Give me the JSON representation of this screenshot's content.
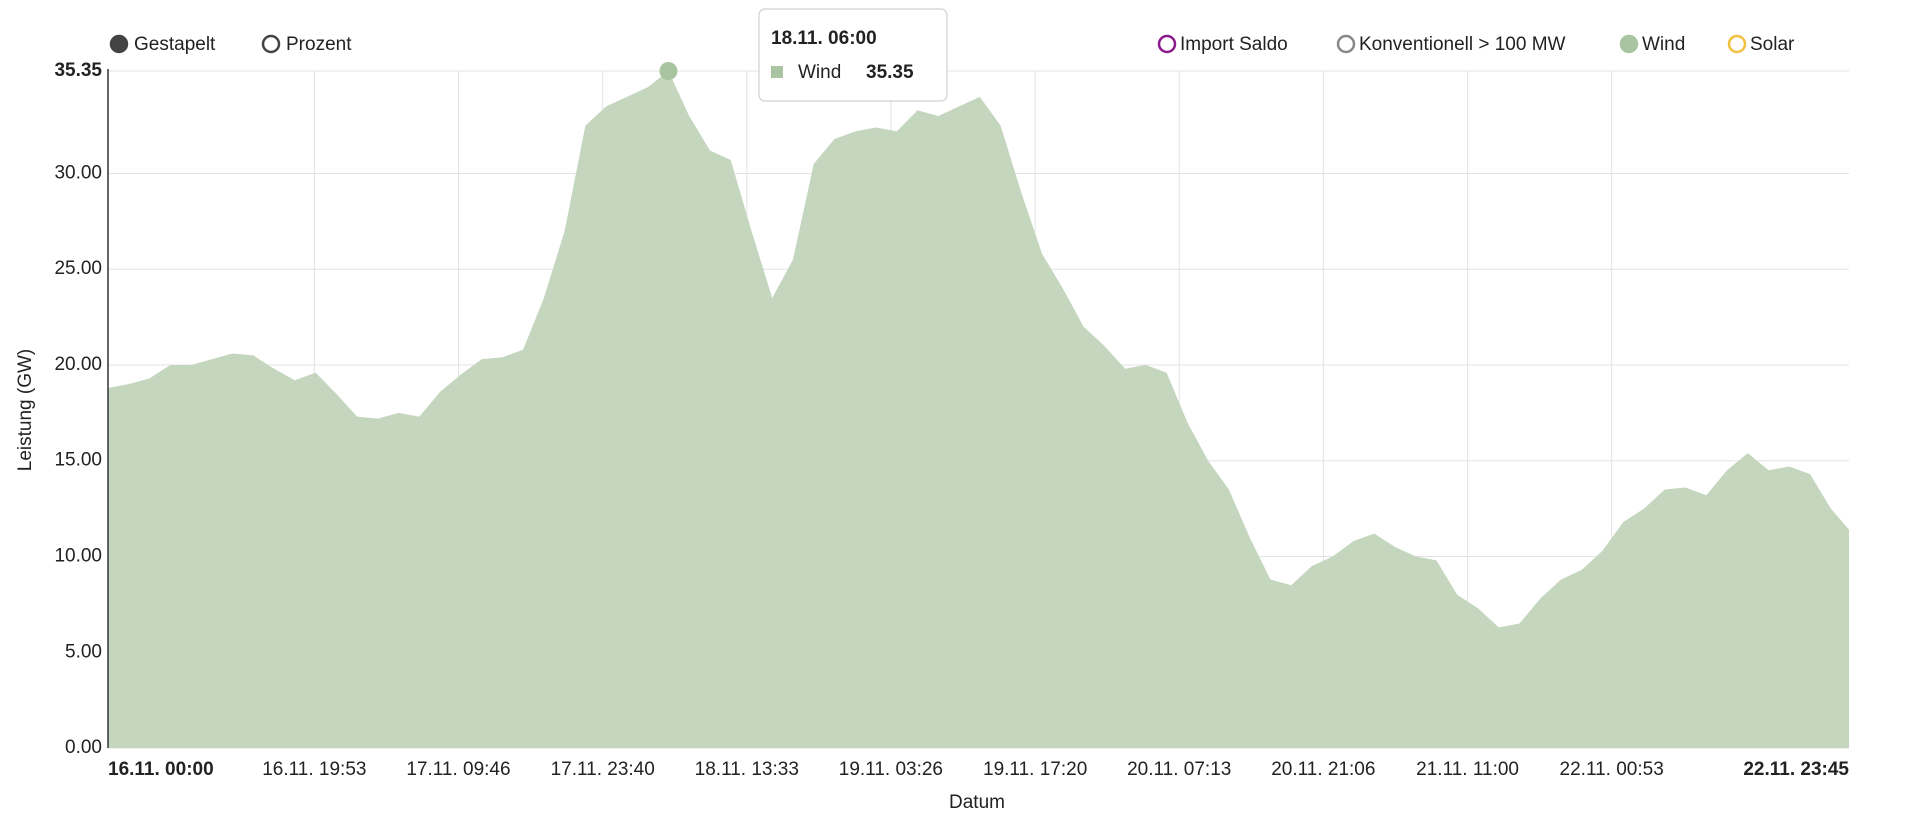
{
  "chart_data": {
    "type": "area",
    "x_label": "Datum",
    "y_label": "Leistung (GW)",
    "modes": [
      "Gestapelt",
      "Prozent"
    ],
    "legend_items": [
      {
        "name": "Import Saldo",
        "color": "#8b1a8b"
      },
      {
        "name": "Konventionell > 100 MW",
        "color": "#888888"
      }
    ],
    "legend_items_after": [
      {
        "name": "Solar",
        "color": "#f0c040"
      }
    ],
    "x": [
      "16.11. 00:00",
      "16.11. 02:00",
      "16.11. 04:00",
      "16.11. 06:00",
      "16.11. 08:00",
      "16.11. 10:00",
      "16.11. 12:00",
      "16.11. 14:00",
      "16.11. 16:00",
      "16.11. 18:00",
      "16.11. 20:00",
      "16.11. 22:00",
      "17.11. 00:00",
      "17.11. 02:00",
      "17.11. 04:00",
      "17.11. 06:00",
      "17.11. 08:00",
      "17.11. 10:00",
      "17.11. 12:00",
      "17.11. 14:00",
      "17.11. 16:00",
      "17.11. 18:00",
      "17.11. 20:00",
      "17.11. 22:00",
      "18.11. 00:00",
      "18.11. 02:00",
      "18.11. 04:00",
      "18.11. 06:00",
      "18.11. 08:00",
      "18.11. 10:00",
      "18.11. 12:00",
      "18.11. 14:00",
      "18.11. 16:00",
      "18.11. 18:00",
      "18.11. 20:00",
      "18.11. 22:00",
      "19.11. 00:00",
      "19.11. 02:00",
      "19.11. 04:00",
      "19.11. 06:00",
      "19.11. 08:00",
      "19.11. 10:00",
      "19.11. 12:00",
      "19.11. 14:00",
      "19.11. 16:00",
      "19.11. 18:00",
      "19.11. 20:00",
      "19.11. 22:00",
      "20.11. 00:00",
      "20.11. 02:00",
      "20.11. 04:00",
      "20.11. 06:00",
      "20.11. 08:00",
      "20.11. 10:00",
      "20.11. 12:00",
      "20.11. 14:00",
      "20.11. 16:00",
      "20.11. 18:00",
      "20.11. 20:00",
      "20.11. 22:00",
      "21.11. 00:00",
      "21.11. 02:00",
      "21.11. 04:00",
      "21.11. 06:00",
      "21.11. 08:00",
      "21.11. 10:00",
      "21.11. 12:00",
      "21.11. 14:00",
      "21.11. 16:00",
      "21.11. 18:00",
      "21.11. 20:00",
      "21.11. 22:00",
      "22.11. 00:00",
      "22.11. 02:00",
      "22.11. 04:00",
      "22.11. 06:00",
      "22.11. 08:00",
      "22.11. 10:00",
      "22.11. 12:00",
      "22.11. 14:00",
      "22.11. 16:00",
      "22.11. 18:00",
      "22.11. 20:00",
      "22.11. 22:00",
      "22.11. 23:45"
    ],
    "series": [
      {
        "name": "Wind",
        "color": "#c5d6bf",
        "marker_color": "#a9c4a1",
        "values": [
          18.8,
          19.0,
          19.3,
          20.0,
          20.0,
          20.3,
          20.6,
          20.5,
          19.8,
          19.2,
          19.6,
          18.5,
          17.3,
          17.2,
          17.5,
          17.3,
          18.6,
          19.5,
          20.3,
          20.4,
          20.8,
          23.5,
          27.0,
          32.5,
          33.5,
          34.0,
          34.5,
          35.35,
          33.0,
          31.2,
          30.7,
          27.0,
          23.5,
          25.5,
          30.5,
          31.8,
          32.2,
          32.4,
          32.2,
          33.3,
          33.0,
          33.5,
          34.0,
          32.5,
          29.0,
          25.8,
          24.0,
          22.0,
          21.0,
          19.8,
          20.0,
          19.6,
          17.0,
          15.0,
          13.5,
          11.0,
          8.8,
          8.5,
          9.5,
          10.0,
          10.8,
          11.2,
          10.5,
          10.0,
          9.8,
          8.0,
          7.3,
          6.3,
          6.5,
          7.8,
          8.8,
          9.3,
          10.3,
          11.8,
          12.5,
          13.5,
          13.6,
          13.2,
          14.5,
          15.4,
          14.5,
          14.7,
          14.3,
          12.5,
          11.4
        ]
      }
    ],
    "tooltip_index": 27,
    "xlim": [
      "16.11. 00:00",
      "22.11. 23:45"
    ],
    "xticks": [
      "16.11. 00:00",
      "16.11. 19:53",
      "17.11. 09:46",
      "17.11. 23:40",
      "18.11. 13:33",
      "19.11. 03:26",
      "19.11. 17:20",
      "20.11. 07:13",
      "20.11. 21:06",
      "21.11. 11:00",
      "22.11. 00:53",
      "22.11. 23:45"
    ],
    "ylim": [
      0,
      35.35
    ],
    "yticks": [
      {
        "value": 0,
        "label": "0.00"
      },
      {
        "value": 5,
        "label": "5.00"
      },
      {
        "value": 10,
        "label": "10.00"
      },
      {
        "value": 15,
        "label": "15.00"
      },
      {
        "value": 20,
        "label": "20.00"
      },
      {
        "value": 25,
        "label": "25.00"
      },
      {
        "value": 30,
        "label": "30.00"
      },
      {
        "value": 35.35,
        "label": "35.35"
      }
    ],
    "grid": true
  }
}
